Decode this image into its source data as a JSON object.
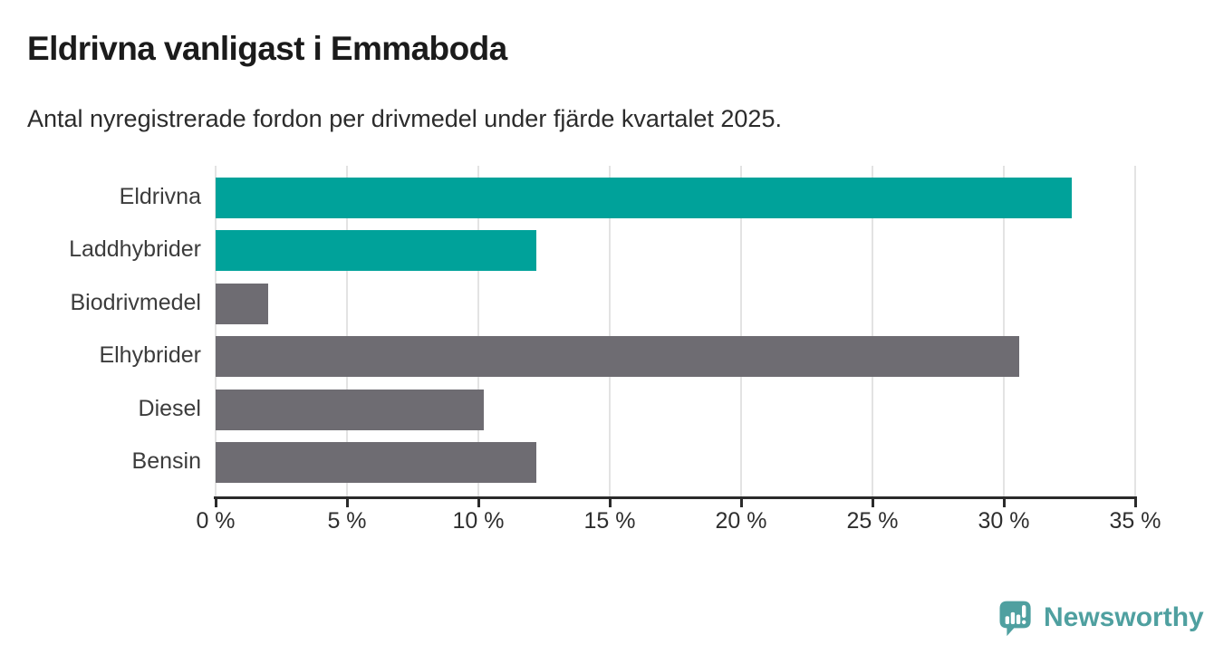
{
  "header": {
    "title": "Eldrivna vanligast i Emmaboda",
    "subtitle": "Antal nyregistrerade fordon per drivmedel under fjärde kvartalet 2025."
  },
  "chart_data": {
    "type": "bar",
    "orientation": "horizontal",
    "title": "Eldrivna vanligast i Emmaboda",
    "subtitle": "Antal nyregistrerade fordon per drivmedel under fjärde kvartalet 2025.",
    "categories": [
      "Eldrivna",
      "Laddhybrider",
      "Biodrivmedel",
      "Elhybrider",
      "Diesel",
      "Bensin"
    ],
    "values": [
      32.6,
      12.2,
      2.0,
      30.6,
      10.2,
      12.2
    ],
    "unit": "%",
    "bar_colors": [
      "#00a29a",
      "#00a29a",
      "#6e6c72",
      "#6e6c72",
      "#6e6c72",
      "#6e6c72"
    ],
    "highlight_color": "#00a29a",
    "default_color": "#6e6c72",
    "xlabel": "",
    "ylabel": "",
    "xlim": [
      0,
      35
    ],
    "x_ticks": [
      0,
      5,
      10,
      15,
      20,
      25,
      30,
      35
    ],
    "x_tick_labels": [
      "0 %",
      "5 %",
      "10 %",
      "15 %",
      "20 %",
      "25 %",
      "30 %",
      "35 %"
    ],
    "grid": true,
    "gridline_color": "#e3e3e3",
    "axis_color": "#2b2b2b",
    "legend": false
  },
  "footer": {
    "brand": "Newsworthy",
    "brand_color": "#4fa0a0"
  }
}
